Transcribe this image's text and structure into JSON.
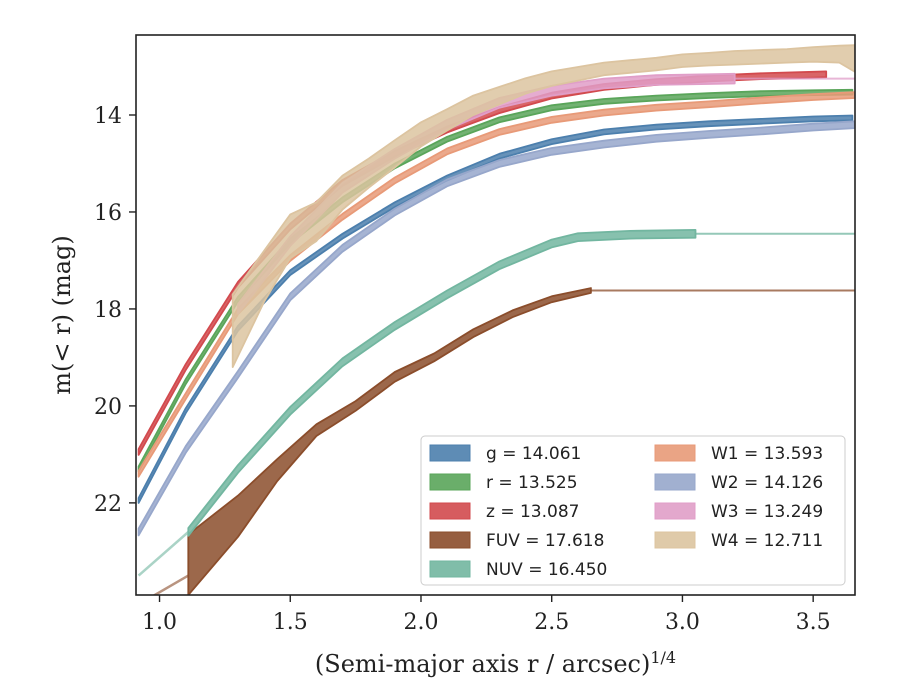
{
  "chart_data": {
    "type": "line",
    "xlabel": "(Semi-major axis r / arcsec)",
    "xlabel_superscript": "1/4",
    "ylabel": "m(< r) (mag)",
    "xlim": [
      0.91,
      3.66
    ],
    "ylim": [
      23.9,
      12.35
    ],
    "y_inverted": true,
    "x_ticks": [
      1.0,
      1.5,
      2.0,
      2.5,
      3.0,
      3.5
    ],
    "x_tick_labels": [
      "1.0",
      "1.5",
      "2.0",
      "2.5",
      "3.0",
      "3.5"
    ],
    "y_ticks": [
      14,
      16,
      18,
      20,
      22
    ],
    "y_tick_labels": [
      "14",
      "16",
      "18",
      "20",
      "22"
    ],
    "grid": false,
    "legend_placement": "lower-right",
    "legend_columns": 2,
    "series": [
      {
        "name": "g",
        "legend_label": "g = 14.061",
        "color": "#4c7fad",
        "x": [
          0.92,
          1.1,
          1.3,
          1.5,
          1.7,
          1.9,
          2.1,
          2.3,
          2.5,
          2.7,
          2.9,
          3.1,
          3.3,
          3.5,
          3.65
        ],
        "y": [
          21.95,
          20.1,
          18.4,
          17.25,
          16.5,
          15.85,
          15.3,
          14.85,
          14.55,
          14.35,
          14.25,
          14.18,
          14.13,
          14.08,
          14.06
        ],
        "band": 0.05
      },
      {
        "name": "r",
        "legend_label": "r = 13.525",
        "color": "#5aa55a",
        "x": [
          0.92,
          1.1,
          1.3,
          1.5,
          1.7,
          1.9,
          2.1,
          2.3,
          2.5,
          2.7,
          2.9,
          3.1,
          3.3,
          3.5,
          3.65
        ],
        "y": [
          21.3,
          19.5,
          17.8,
          16.6,
          15.75,
          15.05,
          14.5,
          14.1,
          13.85,
          13.72,
          13.65,
          13.6,
          13.56,
          13.54,
          13.53
        ],
        "band": 0.05
      },
      {
        "name": "z",
        "legend_label": "z = 13.087",
        "color": "#d24a4e",
        "x": [
          0.92,
          1.1,
          1.3,
          1.5,
          1.7,
          1.9,
          2.1,
          2.3,
          2.5,
          2.7,
          2.9,
          3.1,
          3.3,
          3.5,
          3.55
        ],
        "y": [
          20.95,
          19.2,
          17.5,
          16.3,
          15.4,
          14.8,
          14.3,
          13.9,
          13.6,
          13.42,
          13.32,
          13.25,
          13.2,
          13.17,
          13.16
        ],
        "band": 0.06
      },
      {
        "name": "FUV",
        "legend_label": "FUV = 17.618",
        "color": "#8b4d2b",
        "x": [
          1.11,
          1.3,
          1.45,
          1.6,
          1.75,
          1.9,
          2.05,
          2.2,
          2.35,
          2.5,
          2.65
        ],
        "y": [
          23.1,
          22.2,
          21.3,
          20.5,
          20.0,
          19.4,
          19.0,
          18.5,
          18.1,
          17.8,
          17.62
        ],
        "band_lower": [
          0.8,
          0.5,
          0.25,
          0.12,
          0.1,
          0.1,
          0.08,
          0.08,
          0.07,
          0.06,
          0.05
        ],
        "band_upper": [
          0.45,
          0.35,
          0.2,
          0.12,
          0.1,
          0.1,
          0.08,
          0.08,
          0.07,
          0.06,
          0.05
        ],
        "extension": {
          "x": [
            2.65,
            3.66
          ],
          "y": [
            17.62,
            17.62
          ]
        },
        "tail": {
          "x": [
            0.95,
            1.11
          ],
          "y": [
            24.0,
            23.5
          ]
        }
      },
      {
        "name": "NUV",
        "legend_label": "NUV = 16.450",
        "color": "#72b6a0",
        "x": [
          1.11,
          1.3,
          1.5,
          1.7,
          1.9,
          2.1,
          2.3,
          2.5,
          2.6,
          2.8,
          3.05
        ],
        "y": [
          22.6,
          21.3,
          20.1,
          19.1,
          18.35,
          17.7,
          17.1,
          16.65,
          16.52,
          16.47,
          16.45
        ],
        "band": 0.08,
        "extension": {
          "x": [
            3.05,
            3.66
          ],
          "y": [
            16.45,
            16.45
          ]
        },
        "tail": {
          "x": [
            0.92,
            1.11
          ],
          "y": [
            23.5,
            22.6
          ]
        }
      },
      {
        "name": "W1",
        "legend_label": "W1 = 13.593",
        "color": "#e89a78",
        "x": [
          0.92,
          1.1,
          1.3,
          1.5,
          1.7,
          1.9,
          2.1,
          2.3,
          2.5,
          2.7,
          2.9,
          3.1,
          3.3,
          3.5,
          3.66
        ],
        "y": [
          21.4,
          19.8,
          18.05,
          16.95,
          16.1,
          15.35,
          14.75,
          14.35,
          14.1,
          13.95,
          13.85,
          13.78,
          13.7,
          13.63,
          13.59
        ],
        "band": 0.06
      },
      {
        "name": "W2",
        "legend_label": "W2 = 14.126",
        "color": "#97a7cb",
        "x": [
          0.92,
          1.1,
          1.3,
          1.5,
          1.7,
          1.9,
          2.1,
          2.3,
          2.5,
          2.7,
          2.9,
          3.1,
          3.3,
          3.5,
          3.66
        ],
        "y": [
          22.6,
          20.9,
          19.35,
          17.75,
          16.75,
          16.0,
          15.4,
          15.0,
          14.75,
          14.6,
          14.48,
          14.4,
          14.33,
          14.25,
          14.2
        ],
        "band": 0.07
      },
      {
        "name": "W3",
        "legend_label": "W3 = 13.249",
        "color": "#e09ec8",
        "x": [
          1.3,
          1.5,
          1.7,
          1.9,
          2.1,
          2.3,
          2.5,
          2.7,
          2.9,
          3.1,
          3.2
        ],
        "y": [
          18.0,
          16.6,
          15.5,
          14.8,
          14.2,
          13.75,
          13.5,
          13.35,
          13.28,
          13.26,
          13.25
        ],
        "band": 0.1,
        "extension": {
          "x": [
            3.2,
            3.66
          ],
          "y": [
            13.25,
            13.25
          ]
        }
      },
      {
        "name": "W4",
        "legend_label": "W4 = 12.711",
        "color": "#dcc4a0",
        "x": [
          1.28,
          1.4,
          1.5,
          1.6,
          1.7,
          1.8,
          1.9,
          2.0,
          2.1,
          2.2,
          2.3,
          2.4,
          2.5,
          2.6,
          2.7,
          2.8,
          2.9,
          3.0,
          3.1,
          3.2,
          3.3,
          3.4,
          3.5,
          3.6,
          3.66
        ],
        "y": [
          18.4,
          17.3,
          16.5,
          16.2,
          15.6,
          15.2,
          14.8,
          14.4,
          14.1,
          13.8,
          13.6,
          13.4,
          13.25,
          13.15,
          13.05,
          13.0,
          12.95,
          12.88,
          12.85,
          12.82,
          12.8,
          12.78,
          12.75,
          12.72,
          12.71
        ],
        "band_lower": [
          0.8,
          0.55,
          0.45,
          0.4,
          0.35,
          0.3,
          0.28,
          0.25,
          0.22,
          0.2,
          0.18,
          0.16,
          0.15,
          0.14,
          0.13,
          0.13,
          0.13,
          0.13,
          0.13,
          0.14,
          0.14,
          0.14,
          0.15,
          0.2,
          0.4
        ],
        "band_upper": [
          0.7,
          0.5,
          0.45,
          0.4,
          0.35,
          0.3,
          0.28,
          0.25,
          0.22,
          0.2,
          0.18,
          0.16,
          0.15,
          0.14,
          0.13,
          0.13,
          0.13,
          0.13,
          0.13,
          0.14,
          0.14,
          0.14,
          0.15,
          0.15,
          0.15
        ]
      }
    ],
    "legend": [
      {
        "series": "g",
        "label": "g = 14.061"
      },
      {
        "series": "r",
        "label": "r = 13.525"
      },
      {
        "series": "z",
        "label": "z = 13.087"
      },
      {
        "series": "FUV",
        "label": "FUV = 17.618"
      },
      {
        "series": "NUV",
        "label": "NUV = 16.450"
      },
      {
        "series": "W1",
        "label": "W1 = 13.593"
      },
      {
        "series": "W2",
        "label": "W2 = 14.126"
      },
      {
        "series": "W3",
        "label": "W3 = 13.249"
      },
      {
        "series": "W4",
        "label": "W4 = 12.711"
      }
    ]
  }
}
